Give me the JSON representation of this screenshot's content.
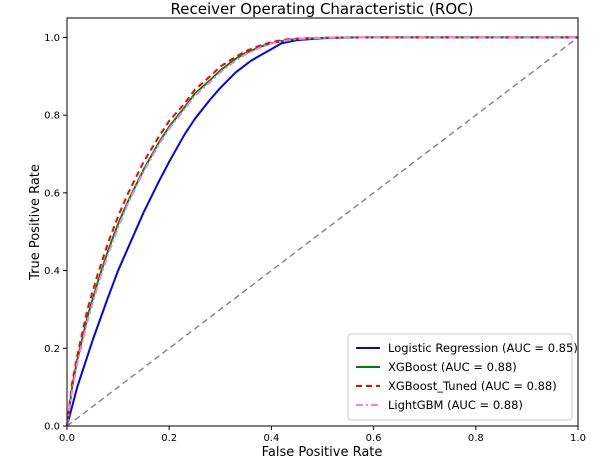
{
  "chart_data": {
    "type": "line",
    "title": "Receiver Operating Characteristic (ROC)",
    "xlabel": "False Positive Rate",
    "ylabel": "True Positive Rate",
    "xlim": [
      0,
      1
    ],
    "ylim": [
      0,
      1.05
    ],
    "xticks": [
      "0.0",
      "0.2",
      "0.4",
      "0.6",
      "0.8",
      "1.0"
    ],
    "yticks": [
      "0.0",
      "0.2",
      "0.4",
      "0.6",
      "0.8",
      "1.0"
    ],
    "grid": false,
    "legend_position": "lower-right",
    "series": [
      {
        "name": "Logistic Regression (AUC = 0.85)",
        "color": "#0000ff",
        "dash": "solid",
        "x": [
          0,
          0.02,
          0.05,
          0.08,
          0.1,
          0.12,
          0.15,
          0.18,
          0.2,
          0.23,
          0.25,
          0.28,
          0.3,
          0.33,
          0.36,
          0.38,
          0.4,
          0.42,
          0.45,
          0.5,
          0.55,
          0.6,
          0.7,
          0.8,
          0.9,
          1.0
        ],
        "y": [
          0,
          0.1,
          0.22,
          0.33,
          0.4,
          0.46,
          0.55,
          0.63,
          0.68,
          0.75,
          0.79,
          0.84,
          0.87,
          0.91,
          0.94,
          0.955,
          0.97,
          0.985,
          0.993,
          0.998,
          1.0,
          1.0,
          1.0,
          1.0,
          1.0,
          1.0
        ]
      },
      {
        "name": "XGBoost (AUC = 0.88)",
        "color": "#008000",
        "dash": "solid",
        "x": [
          0,
          0.01,
          0.02,
          0.04,
          0.06,
          0.08,
          0.1,
          0.12,
          0.15,
          0.18,
          0.2,
          0.23,
          0.25,
          0.28,
          0.3,
          0.33,
          0.35,
          0.38,
          0.4,
          0.43,
          0.45,
          0.5,
          0.6,
          0.7,
          0.8,
          0.9,
          1.0
        ],
        "y": [
          0,
          0.1,
          0.17,
          0.28,
          0.37,
          0.45,
          0.52,
          0.58,
          0.66,
          0.73,
          0.77,
          0.82,
          0.855,
          0.89,
          0.915,
          0.945,
          0.96,
          0.977,
          0.985,
          0.993,
          0.996,
          0.999,
          1.0,
          1.0,
          1.0,
          1.0,
          1.0
        ]
      },
      {
        "name": "XGBoost_Tuned (AUC = 0.88)",
        "color": "#ff0000",
        "dash": "dashed",
        "x": [
          0,
          0.01,
          0.02,
          0.04,
          0.06,
          0.08,
          0.1,
          0.12,
          0.15,
          0.18,
          0.2,
          0.23,
          0.25,
          0.28,
          0.3,
          0.33,
          0.35,
          0.38,
          0.4,
          0.43,
          0.45,
          0.5,
          0.6,
          0.7,
          0.8,
          0.9,
          1.0
        ],
        "y": [
          0,
          0.11,
          0.18,
          0.3,
          0.39,
          0.47,
          0.54,
          0.6,
          0.68,
          0.745,
          0.785,
          0.83,
          0.865,
          0.9,
          0.925,
          0.95,
          0.965,
          0.98,
          0.988,
          0.995,
          0.997,
          0.999,
          1.0,
          1.0,
          1.0,
          1.0,
          1.0
        ]
      },
      {
        "name": "LightGBM (AUC = 0.88)",
        "color": "#ee82ee",
        "dash": "dashdot",
        "x": [
          0,
          0.01,
          0.02,
          0.04,
          0.06,
          0.08,
          0.1,
          0.12,
          0.15,
          0.18,
          0.2,
          0.23,
          0.25,
          0.28,
          0.3,
          0.33,
          0.35,
          0.38,
          0.4,
          0.43,
          0.45,
          0.5,
          0.6,
          0.7,
          0.8,
          0.9,
          1.0
        ],
        "y": [
          0,
          0.09,
          0.16,
          0.27,
          0.36,
          0.44,
          0.51,
          0.575,
          0.655,
          0.725,
          0.765,
          0.815,
          0.85,
          0.885,
          0.91,
          0.94,
          0.957,
          0.975,
          0.984,
          0.992,
          0.996,
          0.999,
          1.0,
          1.0,
          1.0,
          1.0,
          1.0
        ]
      }
    ],
    "reference_line": {
      "color": "#808080",
      "dash": "dashed",
      "x": [
        0,
        1
      ],
      "y": [
        0,
        1
      ]
    }
  }
}
